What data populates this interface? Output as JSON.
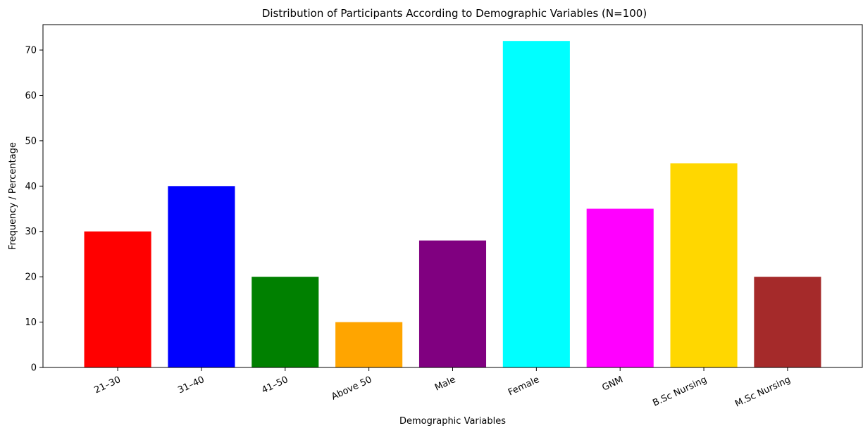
{
  "chart_data": {
    "type": "bar",
    "title": "Distribution of Participants According to Demographic Variables (N=100)",
    "xlabel": "Demographic Variables",
    "ylabel": "Frequency / Percentage",
    "categories": [
      "21–30",
      "31–40",
      "41–50",
      "Above 50",
      "Male",
      "Female",
      "GNM",
      "B.Sc Nursing",
      "M.Sc Nursing"
    ],
    "values": [
      30,
      40,
      20,
      10,
      28,
      72,
      35,
      45,
      20
    ],
    "colors": [
      "#ff0000",
      "#0000ff",
      "#008000",
      "#ffa500",
      "#800080",
      "#00ffff",
      "#ff00ff",
      "#ffd700",
      "#a52a2a"
    ],
    "ylim": [
      0,
      75.6
    ],
    "yticks": [
      0,
      10,
      20,
      30,
      40,
      50,
      60,
      70
    ],
    "grid": false,
    "legend": "none"
  }
}
